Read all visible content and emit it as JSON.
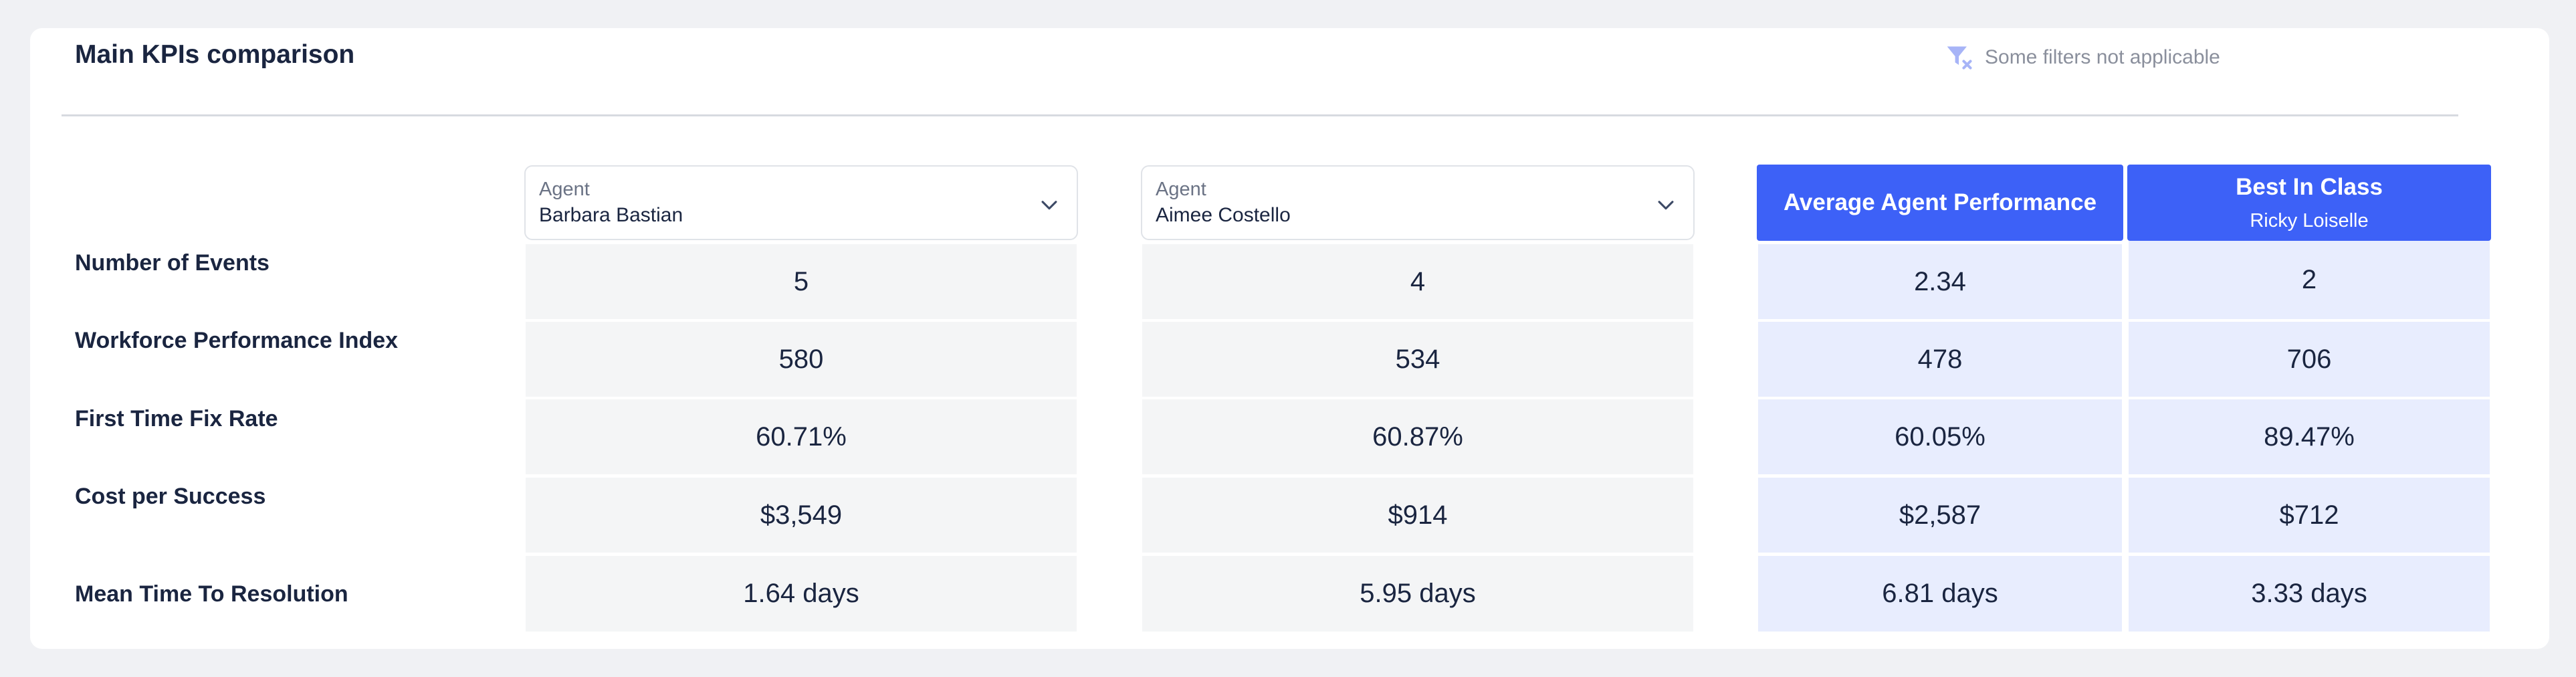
{
  "title": "Main KPIs comparison",
  "filters_notice": {
    "icon": "filter-x-icon",
    "text": "Some filters not applicable",
    "icon_color": "#a7b4f7"
  },
  "columns": {
    "agent1": {
      "label": "Agent",
      "value": "Barbara Bastian"
    },
    "agent2": {
      "label": "Agent",
      "value": "Aimee Costello"
    },
    "average": {
      "title": "Average Agent Performance"
    },
    "best": {
      "title": "Best In Class",
      "subtitle": "Ricky Loiselle"
    }
  },
  "rows": [
    {
      "label": "Number of Events",
      "agent1": "5",
      "agent2": "4",
      "average": "2.34",
      "best": "2"
    },
    {
      "label": "Workforce Performance Index",
      "agent1": "580",
      "agent2": "534",
      "average": "478",
      "best": "706"
    },
    {
      "label": "First Time Fix Rate",
      "agent1": "60.71%",
      "agent2": "60.87%",
      "average": "60.05%",
      "best": "89.47%"
    },
    {
      "label": "Cost per Success",
      "agent1": "$3,549",
      "agent2": "$914",
      "average": "$2,587",
      "best": "$712"
    },
    {
      "label": "Mean Time To Resolution",
      "agent1": "1.64 days",
      "agent2": "5.95 days",
      "average": "6.81 days",
      "best": "3.33 days"
    }
  ],
  "colors": {
    "accent": "#3d61f7",
    "highlight_cell": "#e8edfe",
    "grey_cell": "#f4f5f6",
    "text": "#1a2540"
  }
}
